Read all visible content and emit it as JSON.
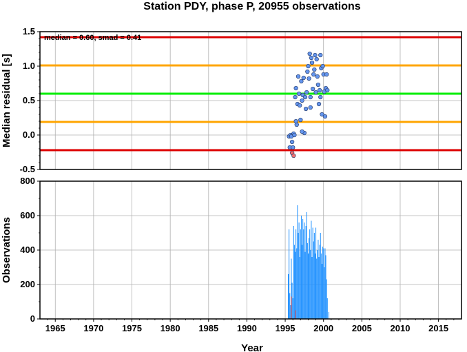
{
  "chart_data": [
    {
      "type": "scatter",
      "title": "Station PDY, phase P, 20955 observations",
      "annotation": "median = 0.60, smad = 0.41",
      "ylabel": "Median residual [s]",
      "xlim": [
        1963,
        2018
      ],
      "ylim": [
        -0.5,
        1.5
      ],
      "yticks": [
        "-0.5",
        "0.0",
        "0.5",
        "1.0",
        "1.5"
      ],
      "grid": true,
      "reference_lines": [
        {
          "name": "median",
          "value": 0.6,
          "color": "#00ee00"
        },
        {
          "name": "+1 smad",
          "value": 1.01,
          "color": "#ffa500"
        },
        {
          "name": "-1 smad",
          "value": 0.19,
          "color": "#ffa500"
        },
        {
          "name": "+2 smad",
          "value": 1.42,
          "color": "#dd0000"
        },
        {
          "name": "-2 smad",
          "value": -0.22,
          "color": "#dd0000"
        }
      ],
      "series": [
        {
          "color": "#6495ed",
          "points": [
            [
              1995.5,
              -0.02
            ],
            [
              1995.6,
              -0.18
            ],
            [
              1995.7,
              0.0
            ],
            [
              1995.8,
              -0.02
            ],
            [
              1995.9,
              -0.1
            ],
            [
              1996.0,
              -0.18
            ],
            [
              1996.1,
              0.02
            ],
            [
              1996.2,
              0.0
            ],
            [
              1996.3,
              0.55
            ],
            [
              1996.4,
              0.68
            ],
            [
              1996.5,
              0.15
            ],
            [
              1996.6,
              0.45
            ],
            [
              1996.7,
              0.85
            ],
            [
              1996.8,
              0.6
            ],
            [
              1996.9,
              0.43
            ],
            [
              1997.0,
              0.22
            ],
            [
              1997.1,
              0.78
            ],
            [
              1997.2,
              0.5
            ],
            [
              1997.3,
              0.58
            ],
            [
              1997.4,
              0.83
            ],
            [
              1997.5,
              0.03
            ],
            [
              1997.6,
              0.55
            ],
            [
              1997.7,
              0.38
            ],
            [
              1997.8,
              0.62
            ],
            [
              1997.9,
              0.92
            ],
            [
              1998.0,
              1.0
            ],
            [
              1998.1,
              0.82
            ],
            [
              1998.2,
              1.18
            ],
            [
              1998.3,
              0.55
            ],
            [
              1998.4,
              1.12
            ],
            [
              1998.5,
              1.05
            ],
            [
              1998.6,
              0.67
            ],
            [
              1998.7,
              0.88
            ],
            [
              1998.8,
              0.95
            ],
            [
              1998.9,
              1.16
            ],
            [
              1999.0,
              0.62
            ],
            [
              1999.1,
              1.1
            ],
            [
              1999.2,
              0.85
            ],
            [
              1999.3,
              0.73
            ],
            [
              1999.4,
              0.45
            ],
            [
              1999.5,
              0.65
            ],
            [
              1999.6,
              1.16
            ],
            [
              1999.7,
              0.97
            ],
            [
              1999.8,
              0.3
            ],
            [
              1999.9,
              1.0
            ],
            [
              2000.0,
              0.88
            ],
            [
              2000.1,
              0.63
            ],
            [
              2000.2,
              0.27
            ],
            [
              2000.3,
              0.68
            ],
            [
              2000.4,
              0.88
            ],
            [
              1996.4,
              0.2
            ],
            [
              1997.2,
              0.05
            ],
            [
              1998.3,
              0.4
            ],
            [
              1999.6,
              0.55
            ],
            [
              2000.5,
              0.65
            ]
          ]
        },
        {
          "color": "#f07070",
          "points": [
            [
              1995.9,
              -0.26
            ],
            [
              1996.1,
              -0.3
            ]
          ]
        }
      ]
    },
    {
      "type": "bar",
      "ylabel": "Observations",
      "xlabel": "Year",
      "xlim": [
        1963,
        2018
      ],
      "ylim": [
        0,
        800
      ],
      "yticks": [
        "0",
        "200",
        "400",
        "600",
        "800"
      ],
      "xticks": [
        "1965",
        "1970",
        "1975",
        "1980",
        "1985",
        "1990",
        "1995",
        "2000",
        "2005",
        "2010",
        "2015"
      ],
      "grid": true,
      "series": [
        {
          "color": "#1e90ff",
          "x": [
            1995.4,
            1995.5,
            1995.6,
            1995.7,
            1995.8,
            1995.9,
            1996.0,
            1996.1,
            1996.2,
            1996.3,
            1996.4,
            1996.5,
            1996.6,
            1996.7,
            1996.8,
            1996.9,
            1997.0,
            1997.1,
            1997.2,
            1997.3,
            1997.4,
            1997.5,
            1997.6,
            1997.7,
            1997.8,
            1997.9,
            1998.0,
            1998.1,
            1998.2,
            1998.3,
            1998.4,
            1998.5,
            1998.6,
            1998.7,
            1998.8,
            1998.9,
            1999.0,
            1999.1,
            1999.2,
            1999.3,
            1999.4,
            1999.5,
            1999.6,
            1999.7,
            1999.8,
            1999.9,
            2000.0,
            2000.1,
            2000.2,
            2000.3,
            2000.4,
            2000.5,
            2000.7
          ],
          "values": [
            260,
            520,
            150,
            80,
            350,
            210,
            120,
            540,
            430,
            390,
            520,
            410,
            660,
            500,
            560,
            360,
            520,
            600,
            430,
            580,
            520,
            560,
            390,
            540,
            620,
            440,
            380,
            470,
            520,
            400,
            570,
            360,
            530,
            450,
            500,
            380,
            530,
            350,
            400,
            460,
            360,
            430,
            500,
            380,
            320,
            420,
            410,
            300,
            410,
            370,
            230,
            120,
            40
          ]
        },
        {
          "color": "#d94040",
          "x": [
            1995.8,
            1996.3
          ],
          "values": [
            130,
            50
          ]
        }
      ]
    }
  ]
}
